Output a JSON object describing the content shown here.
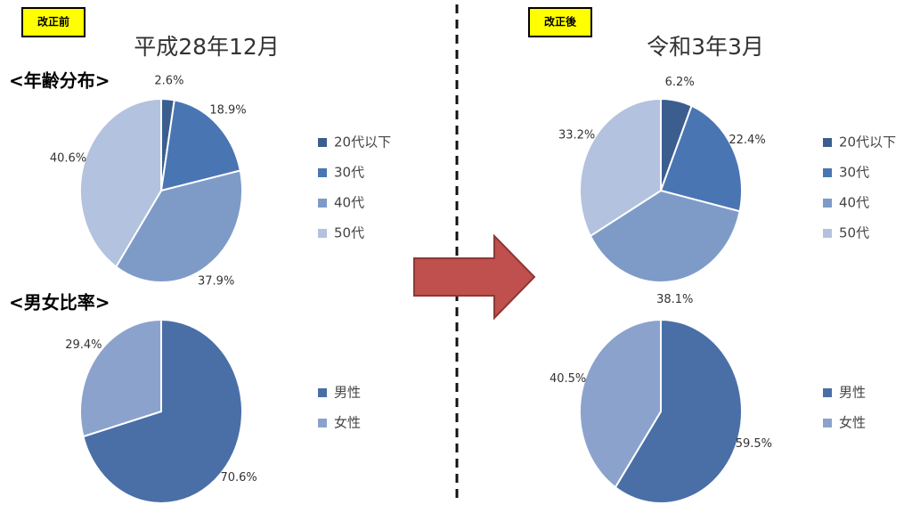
{
  "panels": [
    {
      "badge": "改正前",
      "title": "平成28年12月"
    },
    {
      "badge": "改正後",
      "title": "令和3年3月"
    }
  ],
  "sections": [
    "<年齢分布>",
    "<男女比率>"
  ],
  "chart_data": [
    {
      "type": "pie",
      "categories": [
        "20代以下",
        "30代",
        "40代",
        "50代"
      ],
      "values": [
        2.6,
        18.9,
        37.9,
        40.6
      ],
      "value_labels": [
        "2.6%",
        "18.9%",
        "37.9%",
        "40.6%"
      ],
      "colors": [
        "#3b5e8f",
        "#4a75b3",
        "#7e9bc8",
        "#b3c2de"
      ]
    },
    {
      "type": "pie",
      "categories": [
        "男性",
        "女性"
      ],
      "values": [
        70.6,
        29.4
      ],
      "value_labels": [
        "70.6%",
        "29.4%"
      ],
      "colors": [
        "#4a6fa7",
        "#8ba3cc"
      ]
    },
    {
      "type": "pie",
      "categories": [
        "20代以下",
        "30代",
        "40代",
        "50代"
      ],
      "values": [
        6.2,
        22.4,
        38.1,
        33.2
      ],
      "value_labels": [
        "6.2%",
        "22.4%",
        "38.1%",
        "33.2%"
      ],
      "colors": [
        "#3b5e8f",
        "#4a75b3",
        "#7e9bc8",
        "#b3c2de"
      ]
    },
    {
      "type": "pie",
      "categories": [
        "男性",
        "女性"
      ],
      "values": [
        59.5,
        40.5
      ],
      "value_labels": [
        "59.5%",
        "40.5%"
      ],
      "colors": [
        "#4a6fa7",
        "#8ba3cc"
      ]
    }
  ]
}
